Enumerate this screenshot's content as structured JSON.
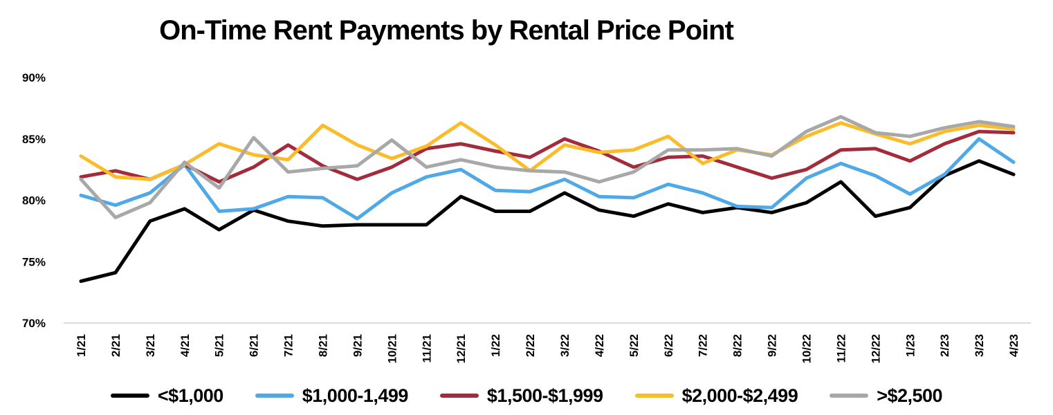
{
  "chart_data": {
    "type": "line",
    "title": "On-Time Rent Payments by Rental Price Point",
    "xlabel": "",
    "ylabel": "",
    "ylim": [
      70,
      90
    ],
    "yticks": [
      "70%",
      "75%",
      "80%",
      "85%",
      "90%"
    ],
    "ytick_values": [
      70,
      75,
      80,
      85,
      90
    ],
    "grid": false,
    "legend_position": "bottom",
    "categories": [
      "1/21",
      "2/21",
      "3/21",
      "4/21",
      "5/21",
      "6/21",
      "7/21",
      "8/21",
      "9/21",
      "10/21",
      "11/21",
      "12/21",
      "1/22",
      "2/22",
      "3/22",
      "4/22",
      "5/22",
      "6/22",
      "7/22",
      "8/22",
      "9/22",
      "10/22",
      "11/22",
      "12/22",
      "1/23",
      "2/23",
      "3/23",
      "4/23"
    ],
    "series": [
      {
        "name": "<$1,000",
        "color": "#000000",
        "values": [
          73.4,
          74.1,
          78.3,
          79.3,
          77.6,
          79.2,
          78.3,
          77.9,
          78.0,
          78.0,
          78.0,
          80.3,
          79.1,
          79.1,
          80.6,
          79.2,
          78.7,
          79.7,
          79.0,
          79.4,
          79.0,
          79.8,
          81.5,
          78.7,
          79.4,
          82.0,
          83.2,
          82.1
        ]
      },
      {
        "name": "$1,000-1,499",
        "color": "#4fa8e8",
        "values": [
          80.4,
          79.6,
          80.6,
          82.9,
          79.1,
          79.3,
          80.3,
          80.2,
          78.5,
          80.6,
          81.9,
          82.5,
          80.8,
          80.7,
          81.7,
          80.3,
          80.2,
          81.3,
          80.6,
          79.5,
          79.4,
          81.8,
          83.0,
          82.0,
          80.5,
          82.1,
          85.0,
          83.1
        ]
      },
      {
        "name": "$1,500-$1,999",
        "color": "#a32c3c",
        "values": [
          81.9,
          82.4,
          81.7,
          82.9,
          81.5,
          82.7,
          84.5,
          82.8,
          81.7,
          82.7,
          84.2,
          84.6,
          84.0,
          83.5,
          85.0,
          84.0,
          82.7,
          83.5,
          83.6,
          82.7,
          81.8,
          82.5,
          84.1,
          84.2,
          83.2,
          84.6,
          85.6,
          85.5
        ]
      },
      {
        "name": "$2,000-$2,499",
        "color": "#fbbc2b",
        "values": [
          83.6,
          81.9,
          81.7,
          82.9,
          84.6,
          83.7,
          83.3,
          86.1,
          84.5,
          83.4,
          84.4,
          86.3,
          84.5,
          82.4,
          84.5,
          83.9,
          84.1,
          85.2,
          83.0,
          84.1,
          83.7,
          85.2,
          86.3,
          85.4,
          84.6,
          85.6,
          86.1,
          85.8
        ]
      },
      {
        "name": ">$2,500",
        "color": "#a8a8a8",
        "values": [
          81.7,
          78.6,
          79.8,
          83.1,
          81.0,
          85.1,
          82.3,
          82.6,
          82.8,
          84.9,
          82.7,
          83.3,
          82.7,
          82.4,
          82.3,
          81.5,
          82.3,
          84.1,
          84.1,
          84.2,
          83.6,
          85.6,
          86.8,
          85.5,
          85.2,
          85.9,
          86.4,
          86.0
        ]
      }
    ]
  }
}
